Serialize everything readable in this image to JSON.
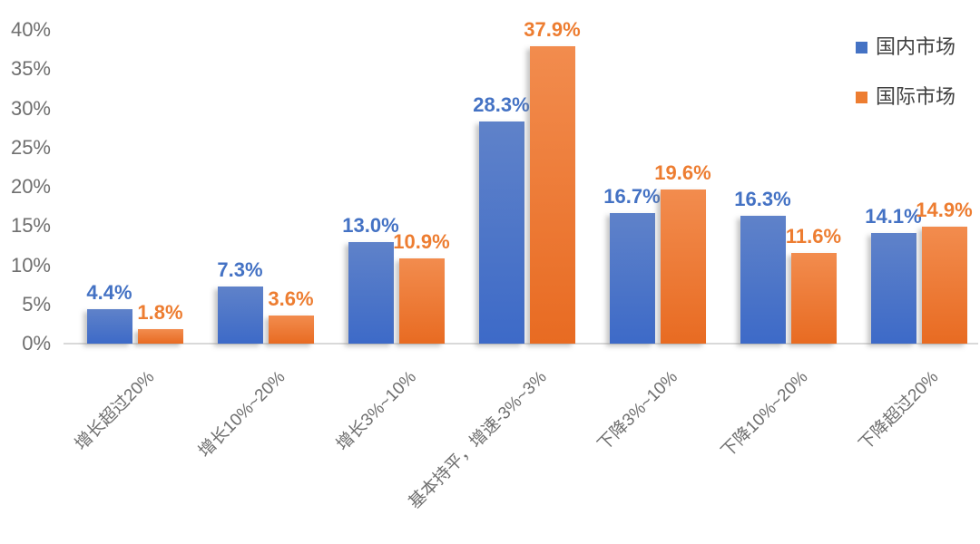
{
  "chart_data": {
    "type": "bar",
    "title": "",
    "xlabel": "",
    "ylabel": "",
    "categories": [
      "增长超过20%",
      "增长10%~20%",
      "增长3%~10%",
      "基本持平，增速-3%~3%",
      "下降3%~10%",
      "下降10%~20%",
      "下降超过20%"
    ],
    "series": [
      {
        "key": "domestic",
        "name": "国内市场",
        "color": "#4472C4",
        "gradient_top": "#5F82C9",
        "gradient_bottom": "#3D6AC8",
        "values": [
          4.4,
          7.3,
          13.0,
          28.3,
          16.7,
          16.3,
          14.1
        ],
        "labels": [
          "4.4%",
          "7.3%",
          "13.0%",
          "28.3%",
          "16.7%",
          "16.3%",
          "14.1%"
        ]
      },
      {
        "key": "international",
        "name": "国际市场",
        "color": "#ED7D31",
        "gradient_top": "#F28C4E",
        "gradient_bottom": "#E86B22",
        "values": [
          1.8,
          3.6,
          10.9,
          37.9,
          19.6,
          11.6,
          14.9
        ],
        "labels": [
          "1.8%",
          "3.6%",
          "10.9%",
          "37.9%",
          "19.6%",
          "11.6%",
          "14.9%"
        ]
      }
    ],
    "ylim": [
      0,
      40
    ],
    "ytick_step": 5,
    "ytick_labels": [
      "0%",
      "5%",
      "10%",
      "15%",
      "20%",
      "25%",
      "30%",
      "35%",
      "40%"
    ],
    "grid": false,
    "data_labels": true,
    "legend_position": "top-right",
    "axis_text_color": "#6f6f6f",
    "legend_text_color": "#404040",
    "axis_line_color": "#d9d9d9"
  }
}
